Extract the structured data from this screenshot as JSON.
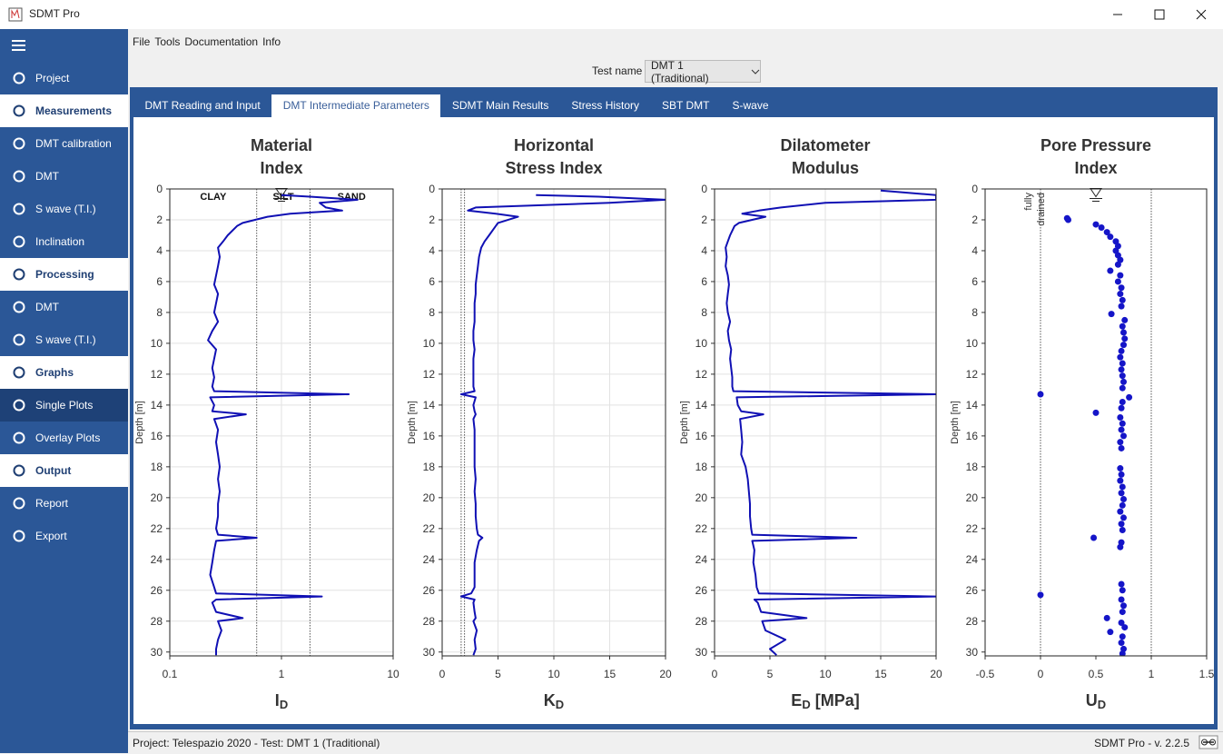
{
  "app": {
    "title": "SDMT Pro"
  },
  "menu": [
    "File",
    "Tools",
    "Documentation",
    "Info"
  ],
  "sidebar": [
    {
      "label": "Project",
      "style": "item"
    },
    {
      "label": "Measurements",
      "style": "header"
    },
    {
      "label": "DMT calibration",
      "style": "item"
    },
    {
      "label": "DMT",
      "style": "item"
    },
    {
      "label": "S wave (T.I.)",
      "style": "item"
    },
    {
      "label": "Inclination",
      "style": "item"
    },
    {
      "label": "Processing",
      "style": "header"
    },
    {
      "label": "DMT",
      "style": "item"
    },
    {
      "label": "S wave (T.I.)",
      "style": "item"
    },
    {
      "label": "Graphs",
      "style": "header"
    },
    {
      "label": "Single Plots",
      "style": "selected"
    },
    {
      "label": "Overlay Plots",
      "style": "item"
    },
    {
      "label": "Output",
      "style": "header"
    },
    {
      "label": "Report",
      "style": "item"
    },
    {
      "label": "Export",
      "style": "item"
    }
  ],
  "test_name": {
    "label": "Test name",
    "value": "DMT 1 (Traditional)"
  },
  "tabs": {
    "items": [
      "DMT Reading and Input",
      "DMT Intermediate Parameters",
      "SDMT Main Results",
      "Stress History",
      "SBT DMT",
      "S-wave"
    ],
    "active": 1
  },
  "status": {
    "left": "Project: Telespazio 2020 - Test: DMT 1 (Traditional)",
    "right": "SDMT Pro - v. 2.2.5"
  },
  "chart_data": [
    {
      "type": "line",
      "title": [
        "Material",
        "Index"
      ],
      "xlabel": {
        "text": "I",
        "sub": "D"
      },
      "ylabel": "Depth [m]",
      "xscale": "log",
      "xlim": [
        0.1,
        10
      ],
      "xticks": [
        0.1,
        1,
        10
      ],
      "ylim": [
        0,
        30.25
      ],
      "yticks": [
        0,
        2,
        4,
        6,
        8,
        10,
        12,
        14,
        16,
        18,
        20,
        22,
        24,
        26,
        28,
        30
      ],
      "grid": true,
      "color": "#1010b4",
      "boundaries": [
        0.6,
        1.8
      ],
      "zone_labels": [
        "CLAY",
        "SILT",
        "SAND"
      ],
      "water_table_depth": 0.5,
      "depth": [
        0.4,
        0.5,
        0.7,
        0.9,
        1.2,
        1.4,
        1.6,
        1.8,
        2.2,
        2.4,
        3.0,
        3.4,
        3.8,
        4.4,
        5.0,
        5.6,
        6.2,
        6.8,
        7.4,
        8.0,
        8.6,
        9.2,
        9.8,
        10.4,
        11.0,
        11.6,
        12.2,
        12.8,
        13.1,
        13.3,
        13.5,
        14.0,
        14.4,
        14.6,
        14.9,
        15.6,
        16.4,
        17.2,
        18.0,
        18.8,
        19.6,
        20.4,
        21.2,
        22.0,
        22.4,
        22.6,
        22.8,
        23.4,
        24.2,
        25.0,
        25.8,
        26.2,
        26.4,
        26.6,
        26.8,
        27.4,
        27.8,
        28.0,
        28.6,
        29.2,
        29.8,
        30.2
      ],
      "values": [
        1.0,
        1.8,
        4.8,
        2.2,
        2.5,
        3.5,
        1.2,
        0.75,
        0.45,
        0.4,
        0.33,
        0.3,
        0.27,
        0.28,
        0.27,
        0.26,
        0.25,
        0.27,
        0.26,
        0.25,
        0.27,
        0.24,
        0.22,
        0.26,
        0.25,
        0.24,
        0.25,
        0.24,
        0.25,
        4.0,
        0.23,
        0.25,
        0.24,
        0.48,
        0.25,
        0.27,
        0.26,
        0.27,
        0.28,
        0.27,
        0.28,
        0.27,
        0.27,
        0.26,
        0.27,
        0.6,
        0.26,
        0.25,
        0.24,
        0.23,
        0.25,
        0.26,
        2.3,
        0.26,
        0.24,
        0.26,
        0.45,
        0.27,
        0.29,
        0.27,
        0.26,
        0.26
      ]
    },
    {
      "type": "line",
      "title": [
        "Horizontal",
        "Stress Index"
      ],
      "xlabel": {
        "text": "K",
        "sub": "D"
      },
      "ylabel": "Depth [m]",
      "xscale": "linear",
      "xlim": [
        0,
        20
      ],
      "xticks": [
        0,
        5,
        10,
        15,
        20
      ],
      "ylim": [
        0,
        30.25
      ],
      "yticks": [
        0,
        2,
        4,
        6,
        8,
        10,
        12,
        14,
        16,
        18,
        20,
        22,
        24,
        26,
        28,
        30
      ],
      "grid": true,
      "color": "#1010b4",
      "boundaries": [
        1.7,
        2.0
      ],
      "depth": [
        0.4,
        0.5,
        0.7,
        0.9,
        1.2,
        1.4,
        1.6,
        1.8,
        2.2,
        2.4,
        3.0,
        3.4,
        3.8,
        4.4,
        5.0,
        5.6,
        6.2,
        6.8,
        7.4,
        8.0,
        8.6,
        9.2,
        9.8,
        10.4,
        11.0,
        11.6,
        12.2,
        12.8,
        13.1,
        13.3,
        13.5,
        14.0,
        14.4,
        14.6,
        14.9,
        15.6,
        16.4,
        17.2,
        18.0,
        18.8,
        19.6,
        20.4,
        21.2,
        22.0,
        22.4,
        22.6,
        22.8,
        23.4,
        24.2,
        25.0,
        25.8,
        26.2,
        26.4,
        26.6,
        26.8,
        27.4,
        27.8,
        28.0,
        28.6,
        29.2,
        29.8,
        30.2
      ],
      "values": [
        8.4,
        14,
        20,
        15,
        3.0,
        2.3,
        4.8,
        6.8,
        5.0,
        4.8,
        4.2,
        3.8,
        3.5,
        3.3,
        3.2,
        3.1,
        3.0,
        3.0,
        2.9,
        2.9,
        2.9,
        2.8,
        2.8,
        2.9,
        2.8,
        2.8,
        2.8,
        2.8,
        2.9,
        1.7,
        3.0,
        2.8,
        2.9,
        3.0,
        2.8,
        2.9,
        2.9,
        2.9,
        2.9,
        3.0,
        2.9,
        3.0,
        3.0,
        3.1,
        3.2,
        3.6,
        3.3,
        3.1,
        2.9,
        2.9,
        2.9,
        2.6,
        1.7,
        2.9,
        2.8,
        2.9,
        3.0,
        2.8,
        3.1,
        2.9,
        3.0,
        2.8
      ]
    },
    {
      "type": "line",
      "title": [
        "Dilatometer",
        "Modulus"
      ],
      "xlabel": {
        "text": "E",
        "sub": "D",
        "suffix": "[MPa]"
      },
      "ylabel": "Depth [m]",
      "xscale": "linear",
      "xlim": [
        0,
        20
      ],
      "xticks": [
        0,
        5,
        10,
        15,
        20
      ],
      "ylim": [
        0,
        30.25
      ],
      "yticks": [
        0,
        2,
        4,
        6,
        8,
        10,
        12,
        14,
        16,
        18,
        20,
        22,
        24,
        26,
        28,
        30
      ],
      "grid": true,
      "color": "#1010b4",
      "depth": [
        0.1,
        0.4,
        0.5,
        0.7,
        0.9,
        1.2,
        1.4,
        1.6,
        1.8,
        2.2,
        2.4,
        3.0,
        3.4,
        3.8,
        4.4,
        5.0,
        5.6,
        6.2,
        6.8,
        7.4,
        8.0,
        8.6,
        9.2,
        9.8,
        10.4,
        11.0,
        11.6,
        12.2,
        12.8,
        13.1,
        13.3,
        13.5,
        14.0,
        14.4,
        14.6,
        14.9,
        15.6,
        16.4,
        17.2,
        18.0,
        18.8,
        19.6,
        20.4,
        21.2,
        22.0,
        22.4,
        22.6,
        22.8,
        23.4,
        24.2,
        25.0,
        25.8,
        26.2,
        26.4,
        26.6,
        26.8,
        27.4,
        27.8,
        28.0,
        28.6,
        29.2,
        29.8,
        30.2
      ],
      "values": [
        15,
        20,
        20,
        20,
        10,
        6,
        4,
        2.5,
        4.6,
        2.2,
        1.8,
        1.4,
        1.2,
        1.0,
        1.1,
        1.0,
        1.2,
        1.3,
        1.2,
        1.1,
        1.2,
        1.4,
        1.2,
        1.3,
        1.5,
        1.4,
        1.5,
        1.6,
        1.6,
        1.7,
        20,
        2.0,
        2.1,
        2.4,
        4.4,
        2.3,
        2.4,
        2.5,
        2.4,
        2.8,
        3.0,
        3.1,
        3.2,
        3.2,
        3.3,
        3.4,
        12.8,
        3.4,
        3.6,
        3.5,
        3.7,
        3.8,
        4.0,
        20,
        3.6,
        3.9,
        4.2,
        8.3,
        4.3,
        4.6,
        6.4,
        5.0,
        5.6
      ]
    },
    {
      "type": "scatter",
      "title": [
        "Pore Pressure",
        "Index"
      ],
      "xlabel": {
        "text": "U",
        "sub": "D"
      },
      "ylabel": "Depth [m]",
      "xscale": "linear",
      "xlim": [
        -0.5,
        1.5
      ],
      "xticks": [
        -0.5,
        0,
        0.5,
        1,
        1.5
      ],
      "ylim": [
        0,
        30.25
      ],
      "yticks": [
        0,
        2,
        4,
        6,
        8,
        10,
        12,
        14,
        16,
        18,
        20,
        22,
        24,
        26,
        28,
        30
      ],
      "grid": false,
      "color": "#1515c8",
      "boundaries": [
        0,
        1
      ],
      "annotation": [
        "fully",
        "drained"
      ],
      "water_table_depth": 0.5,
      "depth": [
        1.9,
        2.0,
        2.3,
        2.5,
        2.8,
        3.1,
        3.4,
        3.7,
        4.0,
        4.3,
        4.6,
        4.9,
        5.3,
        5.6,
        6.0,
        6.4,
        6.8,
        7.2,
        7.6,
        8.1,
        8.5,
        8.9,
        9.3,
        9.7,
        10.1,
        10.5,
        10.9,
        11.3,
        11.7,
        12.1,
        12.5,
        12.9,
        13.3,
        13.5,
        13.8,
        14.2,
        14.5,
        14.8,
        15.2,
        15.6,
        16.0,
        16.4,
        16.8,
        18.1,
        18.5,
        18.9,
        19.3,
        19.7,
        20.1,
        20.5,
        20.9,
        21.3,
        21.7,
        22.1,
        22.6,
        22.9,
        23.2,
        25.6,
        26.0,
        26.3,
        26.6,
        27.0,
        27.4,
        27.8,
        28.1,
        28.4,
        28.7,
        29.0,
        29.4,
        29.8,
        30.1
      ],
      "values": [
        0.24,
        0.25,
        0.5,
        0.55,
        0.6,
        0.63,
        0.68,
        0.7,
        0.68,
        0.7,
        0.72,
        0.7,
        0.63,
        0.72,
        0.7,
        0.73,
        0.72,
        0.74,
        0.73,
        0.64,
        0.76,
        0.74,
        0.75,
        0.76,
        0.75,
        0.73,
        0.72,
        0.74,
        0.73,
        0.74,
        0.75,
        0.74,
        0,
        0.8,
        0.74,
        0.73,
        0.5,
        0.72,
        0.74,
        0.73,
        0.75,
        0.72,
        0.73,
        0.72,
        0.73,
        0.72,
        0.74,
        0.73,
        0.75,
        0.74,
        0.72,
        0.75,
        0.73,
        0.74,
        0.48,
        0.73,
        0.72,
        0.73,
        0.74,
        0,
        0.73,
        0.75,
        0.74,
        0.6,
        0.73,
        0.76,
        0.63,
        0.74,
        0.73,
        0.75,
        0.74
      ]
    }
  ]
}
